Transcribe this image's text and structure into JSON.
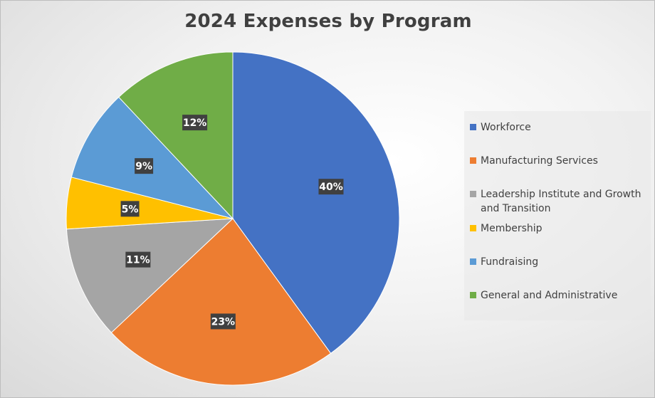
{
  "chart_data": {
    "type": "pie",
    "title": "2024 Expenses by Program",
    "categories": [
      "Workforce",
      "Manufacturing Services",
      "Leadership Institute and Growth and Transition",
      "Membership",
      "Fundraising",
      "General and Administrative"
    ],
    "values": [
      40,
      23,
      11,
      5,
      9,
      12
    ],
    "data_labels": [
      "40%",
      "23%",
      "11%",
      "5%",
      "9%",
      "12%"
    ],
    "colors": [
      "#4472C4",
      "#ED7D31",
      "#A5A5A5",
      "#FFC000",
      "#5B9BD5",
      "#70AD47"
    ],
    "legend_position": "right"
  }
}
